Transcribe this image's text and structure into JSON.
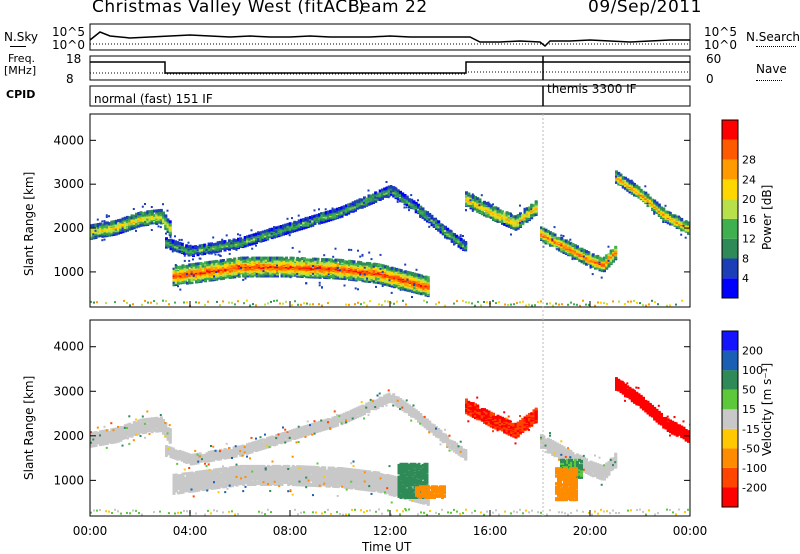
{
  "header": {
    "station": "Christmas Valley West (fitACF)",
    "beam": "Beam 22",
    "date": "09/Sep/2011"
  },
  "params": {
    "nsky_label": "N.Sky",
    "nsky_tick_top": "10^5",
    "nsky_tick_bottom": "10^0",
    "nsearch_label": "N.Search",
    "nsearch_tick_top": "10^5",
    "nsearch_tick_bottom": "10^0",
    "freq_label_1": "Freq.",
    "freq_label_2": "[MHz]",
    "freq_tick_top": "18",
    "freq_tick_bottom": "8",
    "nave_label": "Nave",
    "nave_tick_top": "60",
    "nave_tick_bottom": "0",
    "cpid_label": "CPID",
    "cpid_1": "normal (fast) 151 IF",
    "cpid_2": "themis 3300 IF"
  },
  "colors": {
    "power": [
      "#0000ff",
      "#1c3fb8",
      "#2e8b57",
      "#3fb04f",
      "#b8e04a",
      "#ffd700",
      "#ff9a00",
      "#ff5a00",
      "#ff0000"
    ],
    "velocity": [
      "#1414ff",
      "#1a5fb4",
      "#2e8b57",
      "#5cc83a",
      "#c8c8c8",
      "#ffc800",
      "#ff8c00",
      "#ff4500",
      "#ff0000"
    ]
  },
  "chart_data": [
    {
      "type": "heatmap",
      "name": "power",
      "xlabel": "Time UT",
      "ylabel": "Slant Range [km]",
      "xlim": [
        0,
        24
      ],
      "ylim": [
        200,
        4600
      ],
      "x_ticks": [
        "00:00",
        "04:00",
        "08:00",
        "12:00",
        "16:00",
        "20:00",
        "00:00"
      ],
      "y_ticks": [
        1000,
        2000,
        3000,
        4000
      ],
      "colorbar": {
        "label": "Power [dB]",
        "ticks": [
          "4",
          "8",
          "12",
          "16",
          "20",
          "24",
          "28"
        ]
      },
      "echo_bands": [
        {
          "t": [
            0.0,
            1.0,
            2.0,
            2.8,
            3.2
          ],
          "r": [
            1950,
            2050,
            2250,
            2300,
            2000
          ],
          "width_km": 300,
          "peak_db": 18
        },
        {
          "t": [
            3.0,
            4.0,
            6.0,
            8.0,
            10.0,
            12.0,
            13.0,
            14.5,
            15.0
          ],
          "r": [
            1700,
            1500,
            1700,
            2050,
            2400,
            2900,
            2500,
            1800,
            1600
          ],
          "width_km": 200,
          "peak_db": 12
        },
        {
          "t": [
            3.3,
            4.0,
            6.0,
            8.0,
            10.0,
            11.5,
            12.5,
            13.5
          ],
          "r": [
            950,
            1000,
            1150,
            1150,
            1100,
            1000,
            850,
            700
          ],
          "width_km": 420,
          "peak_db": 26
        },
        {
          "t": [
            15.0,
            16.0,
            17.0,
            17.8
          ],
          "r": [
            2700,
            2400,
            2150,
            2500
          ],
          "width_km": 300,
          "peak_db": 20
        },
        {
          "t": [
            18.0,
            19.0,
            20.0,
            20.5,
            21.0
          ],
          "r": [
            1900,
            1600,
            1300,
            1200,
            1500
          ],
          "width_km": 300,
          "peak_db": 24
        },
        {
          "t": [
            21.0,
            22.0,
            23.0,
            24.0
          ],
          "r": [
            3200,
            2800,
            2300,
            2000
          ],
          "width_km": 250,
          "peak_db": 22
        }
      ]
    },
    {
      "type": "heatmap",
      "name": "velocity",
      "xlabel": "Time UT",
      "ylabel": "Slant Range [km]",
      "xlim": [
        0,
        24
      ],
      "ylim": [
        200,
        4600
      ],
      "x_ticks": [
        "00:00",
        "04:00",
        "08:00",
        "12:00",
        "16:00",
        "20:00",
        "00:00"
      ],
      "y_ticks": [
        1000,
        2000,
        3000,
        4000
      ],
      "colorbar": {
        "label": "Velocity [m s⁻¹]",
        "ticks": [
          "200",
          "100",
          "50",
          "15",
          "-15",
          "-50",
          "-100",
          "-200"
        ]
      },
      "echo_bands": [
        {
          "t": [
            0.0,
            1.0,
            2.0,
            2.8,
            3.2
          ],
          "r": [
            1950,
            2050,
            2250,
            2300,
            2000
          ],
          "width_km": 300,
          "vel": 0
        },
        {
          "t": [
            3.0,
            4.0,
            6.0,
            8.0,
            10.0,
            12.0,
            13.0,
            14.5,
            15.0
          ],
          "r": [
            1700,
            1500,
            1700,
            2050,
            2400,
            2900,
            2500,
            1800,
            1600
          ],
          "width_km": 200,
          "vel": 0
        },
        {
          "t": [
            3.3,
            4.0,
            6.0,
            8.0,
            10.0,
            11.5,
            12.5,
            13.5
          ],
          "r": [
            950,
            1000,
            1150,
            1150,
            1100,
            1000,
            850,
            700
          ],
          "width_km": 420,
          "vel": 5
        },
        {
          "t": [
            15.0,
            16.0,
            17.0,
            17.8
          ],
          "r": [
            2700,
            2400,
            2150,
            2500
          ],
          "width_km": 300,
          "vel": -150
        },
        {
          "t": [
            18.0,
            19.0,
            20.0,
            20.5,
            21.0
          ],
          "r": [
            1900,
            1600,
            1300,
            1200,
            1500
          ],
          "width_km": 300,
          "vel": 0
        },
        {
          "t": [
            21.0,
            22.0,
            23.0,
            24.0
          ],
          "r": [
            3200,
            2800,
            2300,
            2000
          ],
          "width_km": 250,
          "vel": -250
        }
      ],
      "features": [
        {
          "t": [
            12.3,
            13.5
          ],
          "r": [
            650,
            1400
          ],
          "vel": 60
        },
        {
          "t": [
            13.0,
            14.2
          ],
          "r": [
            650,
            900
          ],
          "vel": -60
        },
        {
          "t": [
            18.8,
            19.6
          ],
          "r": [
            1100,
            1500
          ],
          "vel": 30
        },
        {
          "t": [
            18.6,
            19.4
          ],
          "r": [
            600,
            1300
          ],
          "vel": -60
        }
      ]
    }
  ]
}
